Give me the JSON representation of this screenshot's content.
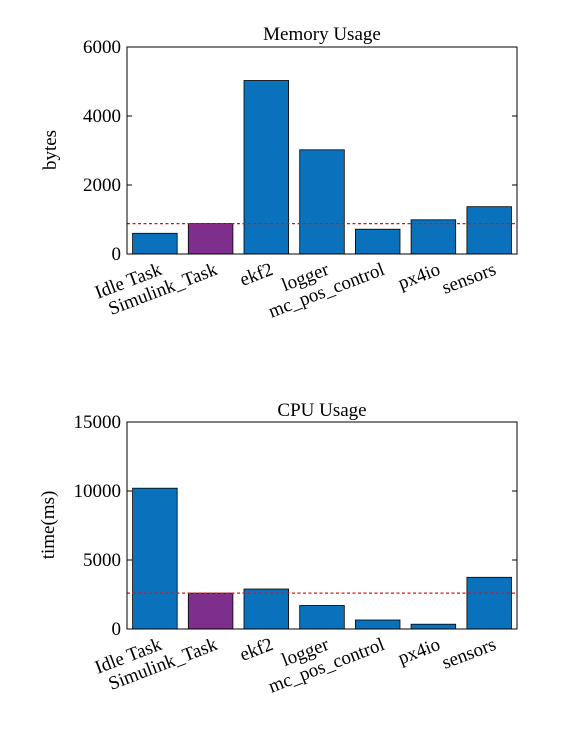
{
  "colors": {
    "bar": "#0a72bd",
    "highlight": "#7e2f8e",
    "reference_line": "#e01010",
    "axis": "#000000",
    "background": "#ffffff"
  },
  "chart_data": [
    {
      "type": "bar",
      "title": "Memory Usage",
      "xlabel": "",
      "ylabel": "bytes",
      "categories": [
        "Idle Task",
        "Simulink_Task",
        "ekf2",
        "logger",
        "mc_pos_control",
        "px4io",
        "sensors"
      ],
      "values": [
        600,
        880,
        5030,
        3020,
        720,
        990,
        1370
      ],
      "highlight_category": "Simulink_Task",
      "reference_line": 880,
      "ylim": [
        0,
        6000
      ],
      "yticks": [
        0,
        2000,
        4000,
        6000
      ],
      "ytick_labels": [
        "0",
        "2000",
        "4000",
        "6000"
      ],
      "grid": false,
      "legend": "none"
    },
    {
      "type": "bar",
      "title": "CPU Usage",
      "xlabel": "",
      "ylabel": "time(ms)",
      "categories": [
        "Idle Task",
        "Simulink_Task",
        "ekf2",
        "logger",
        "mc_pos_control",
        "px4io",
        "sensors"
      ],
      "values": [
        10200,
        2600,
        2900,
        1700,
        650,
        350,
        3750
      ],
      "highlight_category": "Simulink_Task",
      "reference_line": 2600,
      "ylim": [
        0,
        15000
      ],
      "yticks": [
        0,
        5000,
        10000,
        15000
      ],
      "ytick_labels": [
        "0",
        "5000",
        "10000",
        "15000"
      ],
      "grid": false,
      "legend": "none"
    }
  ]
}
